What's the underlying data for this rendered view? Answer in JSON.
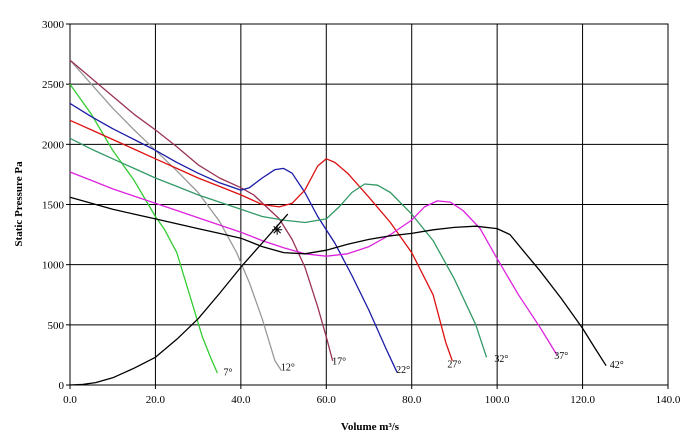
{
  "chart_data": {
    "type": "line",
    "xlabel": "Volume m³/s",
    "ylabel": "Static Pressure Pa",
    "xlim": [
      0,
      140
    ],
    "ylim": [
      0,
      3000
    ],
    "x_ticks": [
      "0.0",
      "20.0",
      "40.0",
      "60.0",
      "80.0",
      "100.0",
      "120.0",
      "140.0"
    ],
    "y_ticks": [
      "0",
      "500",
      "1000",
      "1500",
      "2000",
      "2500",
      "3000"
    ],
    "grid": true,
    "series": [
      {
        "name": "7°",
        "color": "#33cc33",
        "label_at": [
          37,
          80
        ],
        "points": [
          [
            0,
            2500
          ],
          [
            5,
            2250
          ],
          [
            10,
            1950
          ],
          [
            15,
            1700
          ],
          [
            20,
            1400
          ],
          [
            22,
            1300
          ],
          [
            25,
            1100
          ],
          [
            28,
            750
          ],
          [
            31,
            400
          ],
          [
            33,
            220
          ],
          [
            34.5,
            100
          ]
        ]
      },
      {
        "name": "12°",
        "color": "#999999",
        "label_at": [
          51,
          120
        ],
        "points": [
          [
            0,
            2700
          ],
          [
            5,
            2500
          ],
          [
            10,
            2300
          ],
          [
            15,
            2120
          ],
          [
            20,
            1950
          ],
          [
            25,
            1780
          ],
          [
            30,
            1600
          ],
          [
            35,
            1360
          ],
          [
            39,
            1100
          ],
          [
            42,
            850
          ],
          [
            45,
            550
          ],
          [
            48,
            200
          ],
          [
            49.5,
            120
          ]
        ]
      },
      {
        "name": "17°",
        "color": "#993355",
        "label_at": [
          63,
          170
        ],
        "points": [
          [
            0,
            2700
          ],
          [
            5,
            2550
          ],
          [
            10,
            2400
          ],
          [
            15,
            2250
          ],
          [
            20,
            2120
          ],
          [
            25,
            1980
          ],
          [
            30,
            1830
          ],
          [
            35,
            1720
          ],
          [
            40,
            1640
          ],
          [
            43,
            1580
          ],
          [
            46,
            1480
          ],
          [
            49,
            1380
          ],
          [
            52,
            1210
          ],
          [
            55,
            980
          ],
          [
            58,
            650
          ],
          [
            60,
            400
          ],
          [
            61.5,
            200
          ]
        ]
      },
      {
        "name": "22°",
        "color": "#1a1aa6",
        "label_at": [
          78,
          100
        ],
        "points": [
          [
            0,
            2340
          ],
          [
            5,
            2230
          ],
          [
            10,
            2130
          ],
          [
            15,
            2040
          ],
          [
            20,
            1950
          ],
          [
            25,
            1850
          ],
          [
            30,
            1760
          ],
          [
            35,
            1680
          ],
          [
            40,
            1620
          ],
          [
            42,
            1640
          ],
          [
            45,
            1720
          ],
          [
            48,
            1790
          ],
          [
            50,
            1800
          ],
          [
            52,
            1760
          ],
          [
            55,
            1600
          ],
          [
            58,
            1400
          ],
          [
            62,
            1180
          ],
          [
            66,
            910
          ],
          [
            70,
            620
          ],
          [
            74,
            300
          ],
          [
            76.5,
            110
          ]
        ]
      },
      {
        "name": "27°",
        "color": "#dd1111",
        "label_at": [
          90,
          145
        ],
        "points": [
          [
            0,
            2200
          ],
          [
            5,
            2120
          ],
          [
            10,
            2040
          ],
          [
            15,
            1960
          ],
          [
            20,
            1880
          ],
          [
            25,
            1800
          ],
          [
            30,
            1720
          ],
          [
            35,
            1650
          ],
          [
            40,
            1580
          ],
          [
            45,
            1500
          ],
          [
            49,
            1480
          ],
          [
            52,
            1510
          ],
          [
            55,
            1620
          ],
          [
            58,
            1820
          ],
          [
            60,
            1880
          ],
          [
            62,
            1850
          ],
          [
            65,
            1760
          ],
          [
            70,
            1560
          ],
          [
            75,
            1350
          ],
          [
            80,
            1100
          ],
          [
            85,
            750
          ],
          [
            88,
            350
          ],
          [
            89.5,
            200
          ]
        ]
      },
      {
        "name": "32°",
        "color": "#339966",
        "label_at": [
          101,
          190
        ],
        "points": [
          [
            0,
            2050
          ],
          [
            5,
            1960
          ],
          [
            10,
            1880
          ],
          [
            15,
            1800
          ],
          [
            20,
            1720
          ],
          [
            25,
            1650
          ],
          [
            30,
            1580
          ],
          [
            35,
            1520
          ],
          [
            40,
            1460
          ],
          [
            45,
            1400
          ],
          [
            50,
            1370
          ],
          [
            55,
            1350
          ],
          [
            60,
            1380
          ],
          [
            63,
            1480
          ],
          [
            66,
            1600
          ],
          [
            69,
            1670
          ],
          [
            72,
            1660
          ],
          [
            75,
            1600
          ],
          [
            80,
            1420
          ],
          [
            85,
            1200
          ],
          [
            90,
            880
          ],
          [
            95,
            500
          ],
          [
            97.5,
            230
          ]
        ]
      },
      {
        "name": "37°",
        "color": "#dd22dd",
        "label_at": [
          115,
          215
        ],
        "points": [
          [
            0,
            1770
          ],
          [
            5,
            1700
          ],
          [
            10,
            1630
          ],
          [
            15,
            1570
          ],
          [
            20,
            1510
          ],
          [
            25,
            1450
          ],
          [
            30,
            1390
          ],
          [
            35,
            1330
          ],
          [
            40,
            1270
          ],
          [
            45,
            1200
          ],
          [
            50,
            1140
          ],
          [
            55,
            1090
          ],
          [
            60,
            1070
          ],
          [
            65,
            1090
          ],
          [
            70,
            1150
          ],
          [
            75,
            1250
          ],
          [
            80,
            1370
          ],
          [
            83,
            1480
          ],
          [
            86,
            1530
          ],
          [
            89,
            1520
          ],
          [
            92,
            1450
          ],
          [
            96,
            1300
          ],
          [
            100,
            1050
          ],
          [
            105,
            750
          ],
          [
            110,
            480
          ],
          [
            114,
            250
          ]
        ]
      },
      {
        "name": "42°",
        "color": "#000000",
        "label_at": [
          128,
          140
        ],
        "points": [
          [
            0,
            1560
          ],
          [
            5,
            1510
          ],
          [
            10,
            1460
          ],
          [
            15,
            1420
          ],
          [
            20,
            1380
          ],
          [
            25,
            1340
          ],
          [
            30,
            1300
          ],
          [
            35,
            1260
          ],
          [
            40,
            1220
          ],
          [
            45,
            1150
          ],
          [
            50,
            1100
          ],
          [
            55,
            1090
          ],
          [
            60,
            1120
          ],
          [
            65,
            1170
          ],
          [
            70,
            1210
          ],
          [
            75,
            1240
          ],
          [
            80,
            1260
          ],
          [
            85,
            1290
          ],
          [
            90,
            1310
          ],
          [
            95,
            1320
          ],
          [
            100,
            1300
          ],
          [
            103,
            1250
          ],
          [
            106,
            1120
          ],
          [
            110,
            950
          ],
          [
            115,
            720
          ],
          [
            120,
            470
          ],
          [
            123,
            300
          ],
          [
            125.5,
            160
          ]
        ]
      },
      {
        "name": "",
        "color": "#000000",
        "label_at": null,
        "points": [
          [
            0,
            0
          ],
          [
            3,
            5
          ],
          [
            6,
            20
          ],
          [
            10,
            60
          ],
          [
            15,
            140
          ],
          [
            20,
            230
          ],
          [
            25,
            380
          ],
          [
            30,
            550
          ],
          [
            35,
            760
          ],
          [
            40,
            980
          ],
          [
            45,
            1180
          ],
          [
            48,
            1300
          ],
          [
            51,
            1420
          ]
        ]
      }
    ],
    "operating_point": [
      48.5,
      1290
    ]
  }
}
